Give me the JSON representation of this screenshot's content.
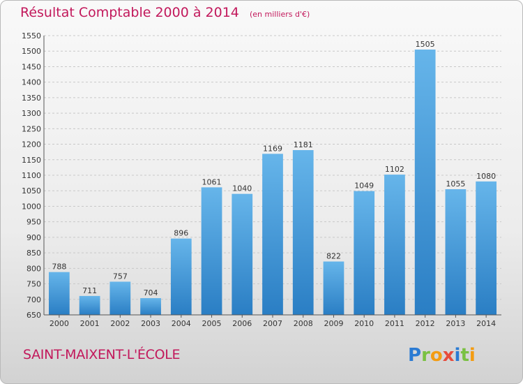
{
  "header": {
    "title": "Résultat Comptable 2000 à 2014",
    "subtitle": "(en milliers d'€)"
  },
  "footer": {
    "city": "SAINT-MAIXENT-L'ÉCOLE",
    "logo_text": "Proxiti"
  },
  "colors": {
    "title": "#c2185b",
    "bar_light": "#66b5ea",
    "bar_dark": "#2a7ec4",
    "grid": "#c8c8c8"
  },
  "chart_data": {
    "type": "bar",
    "title": "Résultat Comptable 2000 à 2014",
    "subtitle": "(en milliers d'€)",
    "categories": [
      "2000",
      "2001",
      "2002",
      "2003",
      "2004",
      "2005",
      "2006",
      "2007",
      "2008",
      "2009",
      "2010",
      "2011",
      "2012",
      "2013",
      "2014"
    ],
    "values": [
      788,
      711,
      757,
      704,
      896,
      1061,
      1040,
      1169,
      1181,
      822,
      1049,
      1102,
      1505,
      1055,
      1080
    ],
    "ylim": [
      650,
      1550
    ],
    "yticks": [
      650,
      700,
      750,
      800,
      850,
      900,
      950,
      1000,
      1050,
      1100,
      1150,
      1200,
      1250,
      1300,
      1350,
      1400,
      1450,
      1500,
      1550
    ],
    "grid": true,
    "xlabel": "",
    "ylabel": ""
  }
}
